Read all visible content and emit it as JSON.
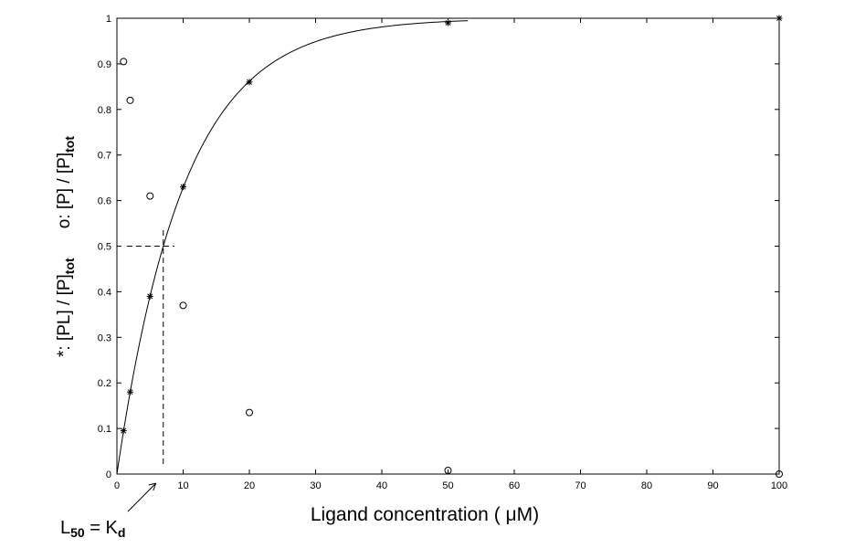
{
  "chart_data": {
    "type": "scatter",
    "xlabel": "Ligand  concentration ( μM)",
    "ylabel": {
      "part1": "*: [PL] / [P]",
      "part1_sub": "tot",
      "part2": "o: [P] / [P]",
      "part2_sub": "tot"
    },
    "xlim": [
      0,
      100
    ],
    "ylim": [
      0,
      1
    ],
    "x_ticks": [
      "0",
      "10",
      "20",
      "30",
      "40",
      "50",
      "60",
      "70",
      "80",
      "90",
      "100"
    ],
    "y_ticks": [
      "0",
      "0.1",
      "0.2",
      "0.3",
      "0.4",
      "0.5",
      "0.6",
      "0.7",
      "0.8",
      "0.9",
      "1"
    ],
    "grid": false,
    "series": [
      {
        "marker": "*",
        "x": [
          1,
          2,
          5,
          10,
          20,
          50,
          100
        ],
        "y": [
          0.095,
          0.18,
          0.39,
          0.63,
          0.86,
          0.99,
          1.0
        ]
      },
      {
        "marker": "o",
        "x": [
          1,
          2,
          5,
          10,
          20,
          50,
          100
        ],
        "y": [
          0.905,
          0.82,
          0.61,
          0.37,
          0.135,
          0.008,
          0.0
        ]
      }
    ],
    "fit_curve": {
      "kd": 7,
      "x_end": 53
    },
    "annotation": {
      "text_main": "L",
      "text_sub1": "50",
      "text_eq": " = K",
      "text_sub2": "d",
      "x": 7,
      "y": 0.5
    }
  }
}
